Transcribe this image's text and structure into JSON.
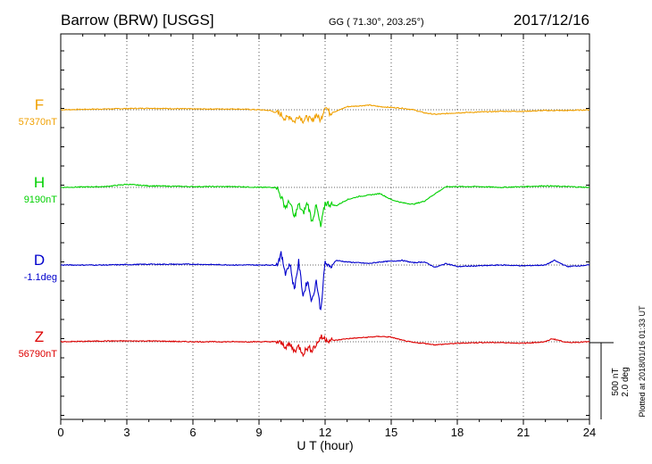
{
  "header": {
    "station": "Barrow (BRW)  [USGS]",
    "coords": "GG ( 71.30°, 203.25°)",
    "date": "2017/12/16"
  },
  "plotted_note": "Plotted at 2018/01/16 01:33 UT",
  "scale_bar": {
    "line1": "500 nT",
    "line2": "2.0 deg"
  },
  "colors": {
    "F": "#f0a000",
    "H": "#00d000",
    "D": "#0000cc",
    "Z": "#dd0000",
    "axis": "#000000",
    "grid": "#555555"
  },
  "chart_data": {
    "type": "line",
    "title": "Barrow (BRW)  [USGS]",
    "xlabel": "U T (hour)",
    "xlim": [
      0,
      24
    ],
    "xticks": [
      "0",
      "3",
      "6",
      "9",
      "12",
      "15",
      "18",
      "21",
      "24"
    ],
    "grid": "dotted vertical every 3 hours; dotted baseline per trace",
    "scale_units_per_500nT_offset": "offsets in nT relative to baseline (positive = up)",
    "series": [
      {
        "name": "F",
        "baseline_label": "57370nT",
        "x": [
          0,
          2,
          4,
          6,
          8,
          9,
          9.5,
          10,
          10.2,
          10.4,
          10.6,
          10.8,
          11,
          11.2,
          11.4,
          11.6,
          11.8,
          12,
          12.2,
          12.5,
          13,
          13.5,
          14,
          14.5,
          15,
          15.5,
          16,
          16.5,
          17,
          17.5,
          18,
          19,
          20,
          21,
          22,
          23,
          24
        ],
        "values": [
          0,
          5,
          10,
          5,
          5,
          0,
          -5,
          -30,
          -60,
          -40,
          -80,
          -35,
          -70,
          -50,
          -75,
          -30,
          -70,
          30,
          -20,
          -10,
          20,
          25,
          30,
          20,
          15,
          10,
          0,
          -20,
          -30,
          -25,
          -20,
          -15,
          -10,
          -10,
          -5,
          -5,
          0
        ]
      },
      {
        "name": "H",
        "baseline_label": "9190nT",
        "x": [
          0,
          2,
          3,
          4,
          6,
          8,
          9,
          9.8,
          10,
          10.2,
          10.4,
          10.6,
          10.8,
          11,
          11.2,
          11.4,
          11.6,
          11.8,
          12,
          12.5,
          13,
          13.5,
          14,
          14.5,
          15,
          15.5,
          16,
          16.5,
          17,
          17.5,
          18,
          19,
          20,
          21,
          22,
          23,
          24
        ],
        "values": [
          0,
          5,
          20,
          10,
          5,
          5,
          0,
          0,
          -60,
          -130,
          -90,
          -200,
          -110,
          -170,
          -100,
          -220,
          -120,
          -260,
          -100,
          -120,
          -80,
          -60,
          -50,
          -40,
          -80,
          -100,
          -110,
          -90,
          -40,
          5,
          5,
          5,
          0,
          5,
          10,
          5,
          0
        ]
      },
      {
        "name": "D",
        "baseline_label": "-1.1deg",
        "x": [
          0,
          2,
          4,
          6,
          8,
          9,
          9.8,
          10,
          10.2,
          10.4,
          10.6,
          10.8,
          11,
          11.2,
          11.4,
          11.6,
          11.8,
          12,
          12.2,
          12.5,
          13,
          13.5,
          14,
          14.5,
          15,
          15.5,
          16,
          16.5,
          17,
          17.5,
          18,
          19,
          20,
          21,
          22,
          22.4,
          23,
          24
        ],
        "values": [
          0,
          0,
          5,
          5,
          0,
          0,
          0,
          70,
          -50,
          10,
          -160,
          20,
          -200,
          -100,
          -240,
          -100,
          -300,
          20,
          -20,
          30,
          20,
          15,
          10,
          20,
          25,
          30,
          15,
          20,
          -15,
          10,
          -10,
          -5,
          0,
          -5,
          0,
          30,
          -10,
          0
        ]
      },
      {
        "name": "Z",
        "baseline_label": "56790nT",
        "x": [
          0,
          2,
          4,
          6,
          8,
          9,
          9.8,
          10,
          10.2,
          10.4,
          10.6,
          10.8,
          11,
          11.2,
          11.4,
          11.6,
          11.8,
          12,
          12.2,
          12.5,
          13,
          13.5,
          14,
          14.5,
          15,
          15.5,
          16,
          16.5,
          17,
          17.5,
          18,
          19,
          20,
          21,
          22,
          22.3,
          23,
          24
        ],
        "values": [
          0,
          5,
          5,
          0,
          0,
          0,
          0,
          -10,
          -30,
          -20,
          -60,
          -30,
          -75,
          -40,
          -50,
          -20,
          30,
          20,
          10,
          10,
          20,
          25,
          30,
          35,
          30,
          10,
          -5,
          -10,
          -20,
          -15,
          -10,
          -5,
          -5,
          -10,
          0,
          20,
          -5,
          0
        ]
      }
    ]
  }
}
